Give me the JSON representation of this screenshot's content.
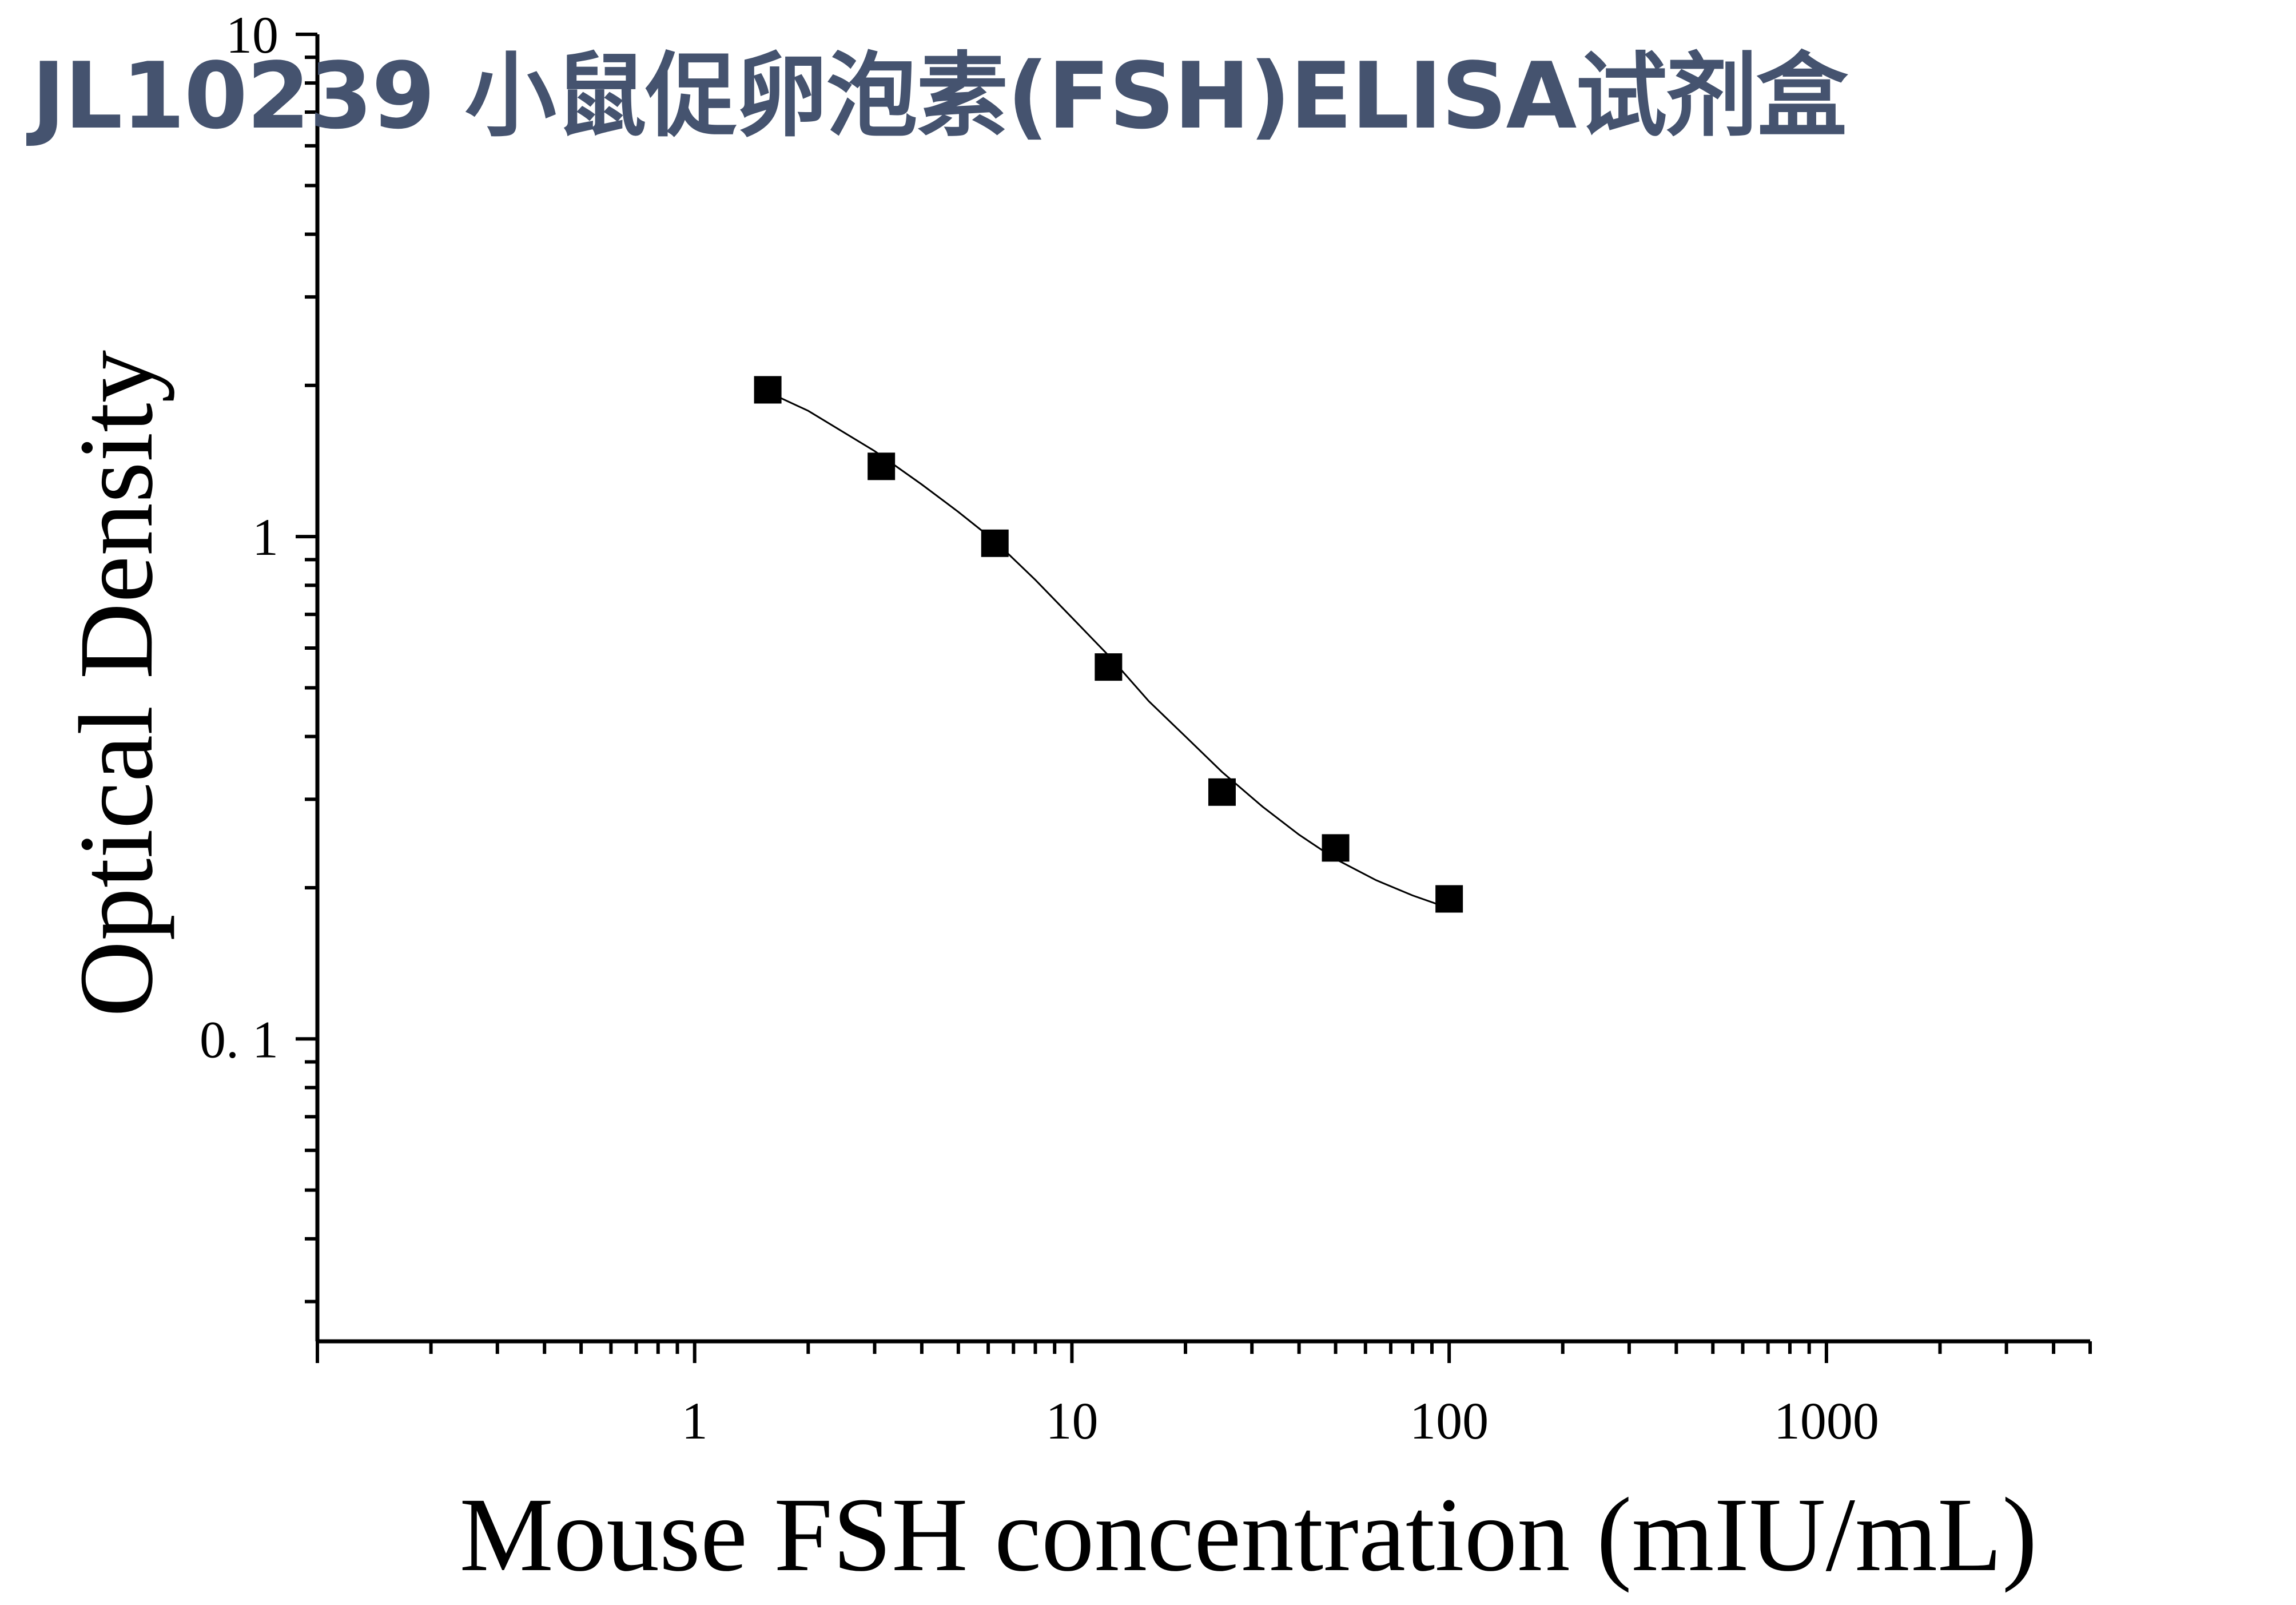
{
  "watermark": {
    "text": "JL10239 小鼠促卵泡素(FSH)ELISA试剂盒",
    "color": "#45536f"
  },
  "chart_data": {
    "type": "scatter",
    "title": "",
    "xlabel": "Mouse FSH concentration (mIU/mL)",
    "ylabel": "Optical Density",
    "xscale": "log",
    "yscale": "log",
    "xlim": [
      0.1,
      5000
    ],
    "ylim": [
      0.025,
      10
    ],
    "x_ticks": [
      {
        "value": 1,
        "label": "1"
      },
      {
        "value": 10,
        "label": "10"
      },
      {
        "value": 100,
        "label": "100"
      },
      {
        "value": 1000,
        "label": "1000"
      }
    ],
    "y_ticks": [
      {
        "value": 0.1,
        "label": "0. 1"
      },
      {
        "value": 1,
        "label": "1"
      },
      {
        "value": 10,
        "label": "10"
      }
    ],
    "grid": false,
    "legend": "none",
    "series": [
      {
        "x": [
          1.5625,
          3.125,
          6.25,
          12.5,
          25,
          50,
          100
        ],
        "y": [
          1.96,
          1.38,
          0.97,
          0.55,
          0.31,
          0.24,
          0.19
        ],
        "marker": "square",
        "color": "#000000"
      }
    ],
    "fit_curve": {
      "x": [
        1.5625,
        2,
        3,
        4,
        5,
        6.25,
        8,
        10,
        12.5,
        16,
        20,
        25,
        32,
        40,
        50,
        64,
        80,
        100
      ],
      "y": [
        1.94,
        1.78,
        1.48,
        1.27,
        1.12,
        0.98,
        0.82,
        0.69,
        0.58,
        0.47,
        0.4,
        0.34,
        0.29,
        0.255,
        0.228,
        0.207,
        0.193,
        0.182
      ],
      "color": "#000000"
    }
  }
}
